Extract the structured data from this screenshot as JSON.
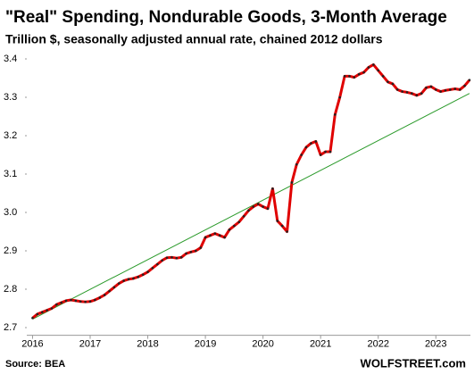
{
  "chart_data": {
    "type": "line",
    "title": "\"Real\" Spending, Nondurable Goods, 3-Month Average",
    "subtitle": "Trillion $, seasonally adjusted annual rate, chained 2012 dollars",
    "source": "Source: BEA",
    "credit": "WOLFSTREET.com",
    "x": [
      2016,
      2016.083,
      2016.167,
      2016.25,
      2016.333,
      2016.417,
      2016.5,
      2016.583,
      2016.667,
      2016.75,
      2016.833,
      2016.917,
      2017,
      2017.083,
      2017.167,
      2017.25,
      2017.333,
      2017.417,
      2017.5,
      2017.583,
      2017.667,
      2017.75,
      2017.833,
      2017.917,
      2018,
      2018.083,
      2018.167,
      2018.25,
      2018.333,
      2018.417,
      2018.5,
      2018.583,
      2018.667,
      2018.75,
      2018.833,
      2018.917,
      2019,
      2019.083,
      2019.167,
      2019.25,
      2019.333,
      2019.417,
      2019.5,
      2019.583,
      2019.667,
      2019.75,
      2019.833,
      2019.917,
      2020,
      2020.083,
      2020.167,
      2020.25,
      2020.333,
      2020.417,
      2020.5,
      2020.583,
      2020.667,
      2020.75,
      2020.833,
      2020.917,
      2021,
      2021.083,
      2021.167,
      2021.25,
      2021.333,
      2021.417,
      2021.5,
      2021.583,
      2021.667,
      2021.75,
      2021.833,
      2021.917,
      2022,
      2022.083,
      2022.167,
      2022.25,
      2022.333,
      2022.417,
      2022.5,
      2022.583,
      2022.667,
      2022.75,
      2022.833,
      2022.917,
      2023,
      2023.083,
      2023.167,
      2023.25,
      2023.333,
      2023.417,
      2023.5,
      2023.583
    ],
    "series": [
      {
        "color": "#e00000",
        "marker_color": "#222222",
        "values": [
          2.725,
          2.735,
          2.74,
          2.745,
          2.75,
          2.76,
          2.765,
          2.77,
          2.772,
          2.77,
          2.768,
          2.767,
          2.768,
          2.772,
          2.778,
          2.785,
          2.795,
          2.805,
          2.815,
          2.822,
          2.826,
          2.828,
          2.832,
          2.838,
          2.845,
          2.855,
          2.865,
          2.875,
          2.882,
          2.883,
          2.881,
          2.883,
          2.893,
          2.897,
          2.9,
          2.908,
          2.935,
          2.94,
          2.945,
          2.94,
          2.935,
          2.955,
          2.965,
          2.975,
          2.99,
          3.005,
          3.015,
          3.022,
          3.015,
          3.01,
          3.062,
          2.978,
          2.965,
          2.95,
          3.078,
          3.125,
          3.15,
          3.17,
          3.18,
          3.185,
          3.15,
          3.158,
          3.158,
          3.255,
          3.3,
          3.355,
          3.355,
          3.352,
          3.36,
          3.365,
          3.378,
          3.385,
          3.37,
          3.355,
          3.34,
          3.335,
          3.32,
          3.315,
          3.313,
          3.31,
          3.305,
          3.31,
          3.325,
          3.328,
          3.32,
          3.315,
          3.318,
          3.32,
          3.322,
          3.32,
          3.33,
          3.345
        ]
      }
    ],
    "trend": {
      "x": [
        2016,
        2023.583
      ],
      "values": [
        2.722,
        3.31
      ],
      "color": "#2a9a2a"
    },
    "xlim": [
      2015.9,
      2023.6
    ],
    "xticks": [
      2016,
      2017,
      2018,
      2019,
      2020,
      2021,
      2022,
      2023
    ],
    "ylim": [
      2.68,
      3.42
    ],
    "yticks": [
      2.7,
      2.8,
      2.9,
      {
        "value": 3,
        "label": "3.0"
      },
      3.1,
      3.2,
      3.3,
      3.4
    ]
  }
}
